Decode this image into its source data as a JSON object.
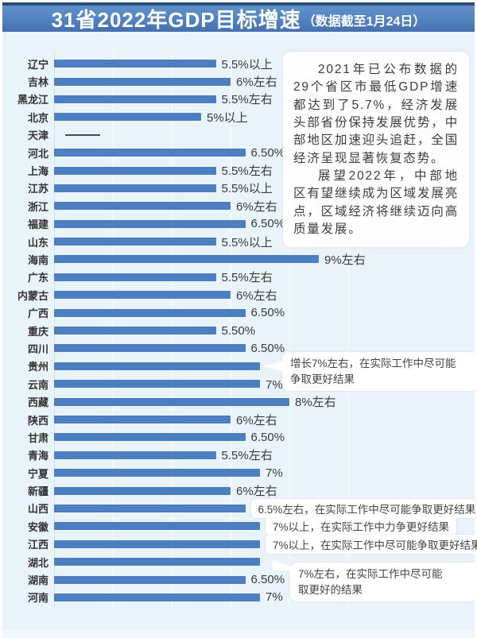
{
  "title": {
    "main": "31省2022年GDP目标增速",
    "sub": "（数据截至1月24日）"
  },
  "note": {
    "p1": "2021年已公布数据的29个省区市最低GDP增速都达到了5.7%，经济发展头部省份保持发展优势，中部地区加速迎头追赶，全国经济呈现显著恢复态势。",
    "p2": "展望2022年，中部地区有望继续成为区域发展亮点，区域经济将继续迈向高质量发展。"
  },
  "chart_data": {
    "type": "bar",
    "orientation": "horizontal",
    "title": "31省2022年GDP目标增速（数据截至1月24日）",
    "unit": "percent",
    "xlim": [
      0,
      10
    ],
    "bar_color": "#4d7fc0",
    "grid": "vertical-faint",
    "rows": [
      {
        "province": "辽宁",
        "value": 5.5,
        "label": "5.5%以上"
      },
      {
        "province": "吉林",
        "value": 6,
        "label": "6%左右"
      },
      {
        "province": "黑龙江",
        "value": 5.5,
        "label": "5.5%左右"
      },
      {
        "province": "北京",
        "value": 5,
        "label": "5%以上"
      },
      {
        "province": "天津",
        "value": null,
        "label": "",
        "dash": true
      },
      {
        "province": "河北",
        "value": 6.5,
        "label": "6.50%"
      },
      {
        "province": "上海",
        "value": 5.5,
        "label": "5.5%左右"
      },
      {
        "province": "江苏",
        "value": 5.5,
        "label": "5.5%以上"
      },
      {
        "province": "浙江",
        "value": 6,
        "label": "6%左右"
      },
      {
        "province": "福建",
        "value": 6.5,
        "label": "6.50%"
      },
      {
        "province": "山东",
        "value": 5.5,
        "label": "5.5%以上"
      },
      {
        "province": "海南",
        "value": 9,
        "label": "9%左右"
      },
      {
        "province": "广东",
        "value": 5.5,
        "label": "5.5%左右"
      },
      {
        "province": "内蒙古",
        "value": 6,
        "label": "6%左右"
      },
      {
        "province": "广西",
        "value": 6.5,
        "label": "6.50%"
      },
      {
        "province": "重庆",
        "value": 5.5,
        "label": "5.50%"
      },
      {
        "province": "四川",
        "value": 6.5,
        "label": "6.50%"
      },
      {
        "province": "贵州",
        "value": 7,
        "label": ""
      },
      {
        "province": "云南",
        "value": 7,
        "label": "7%左右"
      },
      {
        "province": "西藏",
        "value": 8,
        "label": "8%左右"
      },
      {
        "province": "陕西",
        "value": 6,
        "label": "6%左右"
      },
      {
        "province": "甘肃",
        "value": 6.5,
        "label": "6.50%"
      },
      {
        "province": "青海",
        "value": 5.5,
        "label": "5.5%左右"
      },
      {
        "province": "宁夏",
        "value": 7,
        "label": "7%"
      },
      {
        "province": "新疆",
        "value": 6,
        "label": "6%左右"
      },
      {
        "province": "山西",
        "value": 6.5,
        "label": "6.5%左右，在实际工作中尽可能争取更好结果",
        "boxed": true
      },
      {
        "province": "安徽",
        "value": 7,
        "label": "7%以上，在实际工作中力争更好结果",
        "boxed": true
      },
      {
        "province": "江西",
        "value": 7,
        "label": "7%以上，在实际工作中尽可能争取更好结果",
        "boxed": true
      },
      {
        "province": "湖北",
        "value": 7,
        "label": ""
      },
      {
        "province": "湖南",
        "value": 6.5,
        "label": "6.50%"
      },
      {
        "province": "河南",
        "value": 7,
        "label": "7%"
      }
    ],
    "annotations": [
      {
        "target": "贵州",
        "line1": "增长7%左右，在实际工作中尽可能",
        "line2": "争取更好结果"
      },
      {
        "target": "湖北",
        "line1": "7%左右，在实际工作中尽可能",
        "line2": "取更好的结果"
      }
    ]
  }
}
